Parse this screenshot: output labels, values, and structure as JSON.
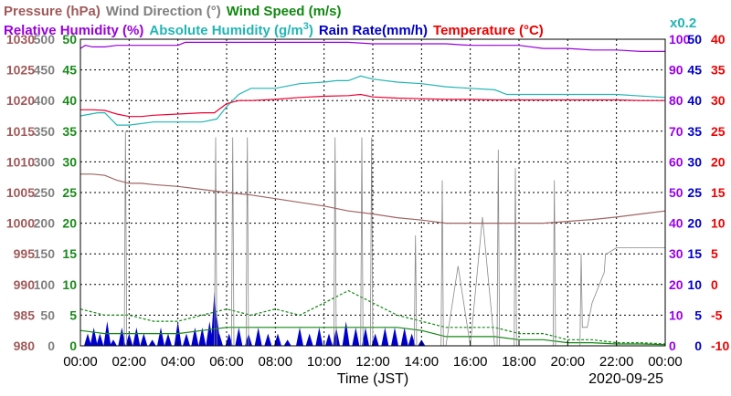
{
  "chart_data": {
    "type": "line",
    "date": "2020-09-25",
    "xlabel": "Time (JST)",
    "x_ticks": [
      "00:00",
      "02:00",
      "04:00",
      "06:00",
      "08:00",
      "10:00",
      "12:00",
      "14:00",
      "16:00",
      "18:00",
      "20:00",
      "22:00",
      "00:00"
    ],
    "xlim_hours": [
      0,
      24
    ],
    "grid": true,
    "legend_labels": {
      "pressure": "Pressure (hPa)",
      "wind_direction": "Wind Direction (°)",
      "wind_speed": "Wind Speed (m/s)",
      "humidity": "Relative Humidity (%)",
      "abs_humidity_prefix": "Absolute Humidity (g/m",
      "abs_humidity_sup": "3",
      "abs_humidity_suffix": ")",
      "rain_rate": "Rain Rate(mm/h)",
      "temperature": "Temperature (°C)",
      "scale_note": "x0.2"
    },
    "axes": {
      "pressure": {
        "ticks": [
          "980",
          "985",
          "990",
          "995",
          "1000",
          "1005",
          "1010",
          "1015",
          "1020",
          "1025",
          "1030"
        ],
        "range": [
          980,
          1030
        ],
        "color": "#a05a5a"
      },
      "wind_direction": {
        "ticks": [
          "0",
          "50",
          "100",
          "150",
          "200",
          "250",
          "300",
          "350",
          "400",
          "450",
          "500"
        ],
        "range": [
          0,
          500
        ],
        "color": "#808080"
      },
      "wind_speed": {
        "ticks": [
          "0",
          "5",
          "10",
          "15",
          "20",
          "25",
          "30",
          "35",
          "40",
          "45",
          "50"
        ],
        "range": [
          0,
          50
        ],
        "color": "#1a8a1a"
      },
      "humidity": {
        "ticks": [
          "0",
          "10",
          "20",
          "30",
          "40",
          "50",
          "60",
          "70",
          "80",
          "90",
          "100"
        ],
        "range": [
          0,
          100
        ],
        "color": "#9900ee"
      },
      "rain_rate": {
        "ticks": [
          "0",
          "5",
          "10",
          "15",
          "20",
          "25",
          "30",
          "35",
          "40",
          "45",
          "50"
        ],
        "range": [
          0,
          50
        ],
        "color": "#0000cc"
      },
      "temperature": {
        "ticks": [
          "-10",
          "-5",
          "0",
          "5",
          "10",
          "15",
          "20",
          "25",
          "30",
          "35",
          "40"
        ],
        "range": [
          -10,
          40
        ],
        "color": "#ee0000"
      }
    },
    "colors": {
      "pressure": "#a06464",
      "wind_direction": "#888888",
      "wind_speed": "#118811",
      "humidity": "#9900dd",
      "abs_humidity": "#22b5b5",
      "rain_rate": "#0000cc",
      "temperature": "#ee0033"
    },
    "series": [
      {
        "key": "pressure",
        "name": "Pressure (hPa)",
        "axis": "pressure",
        "x": [
          0,
          0.5,
          1,
          1.5,
          2,
          2.5,
          3,
          4,
          5,
          6,
          7,
          8,
          9,
          10,
          11,
          12,
          13,
          14,
          15,
          16,
          17,
          18,
          19,
          20,
          21,
          22,
          23,
          24
        ],
        "y": [
          1008,
          1008,
          1007.8,
          1007,
          1006.5,
          1006.5,
          1006.3,
          1006,
          1005.5,
          1005,
          1004.6,
          1004,
          1003.4,
          1002.8,
          1002,
          1001.5,
          1000.9,
          1000.5,
          1000,
          1000,
          1000,
          1000,
          1000,
          1000.3,
          1000.6,
          1001,
          1001.5,
          1002
        ]
      },
      {
        "key": "temperature",
        "name": "Temperature (°C)",
        "axis": "temperature",
        "x": [
          0,
          0.5,
          1,
          1.5,
          2,
          2.5,
          3,
          4,
          5,
          5.5,
          6,
          6.5,
          7,
          8,
          9,
          10,
          11,
          11.5,
          12,
          13,
          14,
          15,
          16,
          17,
          18,
          19,
          20,
          21,
          22,
          23,
          24
        ],
        "y": [
          28.5,
          28.5,
          28.4,
          27.8,
          27.4,
          27.4,
          27.6,
          27.8,
          28,
          28,
          29.5,
          30,
          30,
          30.2,
          30.5,
          30.7,
          30.8,
          31,
          30.6,
          30.4,
          30.3,
          30.2,
          30.2,
          30.1,
          30.1,
          30.1,
          30.1,
          30.1,
          30.1,
          30,
          30
        ]
      },
      {
        "key": "humidity",
        "name": "Relative Humidity (%)",
        "axis": "humidity",
        "x": [
          0,
          0.2,
          0.5,
          1,
          1.5,
          2,
          3,
          4,
          4.3,
          5,
          6,
          7,
          8,
          9,
          10,
          11,
          12,
          13,
          14,
          15,
          16,
          17,
          18,
          19,
          20,
          21,
          22,
          23,
          24
        ],
        "y": [
          97,
          98,
          97.5,
          97.5,
          98,
          98,
          98,
          98,
          99,
          99,
          99,
          99,
          99,
          99,
          99,
          99,
          98.5,
          98.5,
          98.5,
          98.5,
          98,
          98,
          98,
          97,
          97,
          96.5,
          96.5,
          96,
          96
        ]
      },
      {
        "key": "abs_humidity",
        "name": "Absolute Humidity (g/m³)",
        "axis": "humidity",
        "x": [
          0,
          0.7,
          1,
          1.5,
          2,
          3,
          4,
          5,
          5.6,
          6,
          6.5,
          7,
          8,
          9,
          10,
          10.5,
          11,
          11.5,
          12,
          13,
          14,
          15,
          16,
          17,
          17.5,
          18,
          19,
          20,
          21,
          22,
          23,
          24
        ],
        "y": [
          75,
          76,
          76,
          72,
          72,
          73,
          73,
          73,
          74,
          78,
          82,
          84,
          84,
          85.5,
          86,
          86.5,
          86.5,
          88,
          87,
          86,
          85.5,
          84.5,
          84,
          83.5,
          82,
          82,
          82,
          82,
          82,
          82,
          81.5,
          81
        ]
      },
      {
        "key": "wind_direction",
        "name": "Wind Direction (°)",
        "axis": "wind_direction",
        "x": [
          0,
          1.8,
          1.85,
          1.9,
          2,
          4,
          5.5,
          5.55,
          5.6,
          5.7,
          6,
          6.2,
          6.25,
          6.3,
          6.4,
          6.8,
          6.85,
          6.9,
          7,
          8,
          9,
          10,
          10.4,
          10.45,
          10.5,
          10.6,
          11,
          11.5,
          11.55,
          11.6,
          11.7,
          11.9,
          11.95,
          12,
          12.1,
          13,
          13.7,
          13.75,
          13.8,
          13.9,
          14.2,
          14.8,
          14.85,
          14.9,
          15,
          15.5,
          16,
          16.5,
          17,
          17.1,
          17.15,
          17.2,
          17.3,
          17.8,
          17.85,
          17.9,
          18,
          19,
          19.4,
          19.45,
          19.5,
          19.6,
          20,
          20.5,
          20.55,
          20.6,
          20.8,
          21,
          21.5,
          21.55,
          21.6,
          22,
          24
        ],
        "y": [
          0,
          0,
          350,
          0,
          0,
          0,
          0,
          340,
          0,
          0,
          0,
          0,
          340,
          0,
          0,
          0,
          340,
          0,
          0,
          0,
          0,
          0,
          0,
          340,
          0,
          0,
          0,
          0,
          340,
          0,
          0,
          0,
          340,
          0,
          0,
          0,
          0,
          180,
          0,
          0,
          0,
          0,
          270,
          0,
          0,
          130,
          0,
          210,
          0,
          0,
          320,
          0,
          0,
          0,
          290,
          0,
          0,
          0,
          0,
          270,
          0,
          0,
          0,
          0,
          150,
          30,
          30,
          70,
          120,
          150,
          150,
          160,
          160
        ]
      },
      {
        "key": "wind_speed",
        "name": "Wind Speed (m/s)",
        "axis": "wind_speed",
        "x": [
          0,
          1,
          2,
          3,
          4,
          5,
          6,
          7,
          8,
          9,
          10,
          11,
          12,
          13,
          14,
          15,
          16,
          17,
          18,
          19,
          20,
          21,
          22,
          23,
          24
        ],
        "y": [
          6,
          5,
          5,
          4,
          4,
          5,
          6,
          5,
          6,
          5,
          7,
          9,
          7,
          5,
          4,
          3,
          3,
          3,
          2,
          2,
          1,
          1,
          0.5,
          0.5,
          0.3
        ]
      },
      {
        "key": "wind_speed_avg",
        "name": "",
        "axis": "wind_speed",
        "x": [
          0,
          1,
          2,
          3,
          4,
          5,
          6,
          7,
          8,
          9,
          10,
          11,
          12,
          13,
          14,
          15,
          16,
          17,
          18,
          19,
          20,
          21,
          22,
          23,
          24
        ],
        "y": [
          2.5,
          2,
          2,
          2,
          2,
          2.5,
          3,
          3,
          3,
          3,
          3,
          3,
          3,
          3,
          2.5,
          1.5,
          1.5,
          1.5,
          1,
          1,
          0.5,
          0.5,
          0.3,
          0.3,
          0.2
        ]
      },
      {
        "key": "rain_rate",
        "name": "Rain Rate(mm/h)",
        "axis": "rain_rate",
        "x": [
          0.3,
          0.55,
          0.8,
          1.1,
          1.35,
          1.7,
          2,
          2.3,
          2.6,
          2.95,
          3.3,
          3.6,
          4,
          4.35,
          4.7,
          5,
          5.3,
          5.5,
          5.6,
          5.7,
          6.1,
          6.5,
          6.9,
          7.3,
          7.7,
          8.1,
          8.5,
          9,
          9.4,
          9.8,
          10.2,
          10.5,
          10.9,
          11.3,
          11.7,
          12.1,
          12.5,
          12.9,
          13.3,
          13.6,
          14
        ],
        "y": [
          2,
          3,
          2,
          4,
          1,
          3,
          2,
          3,
          2,
          1,
          3,
          2,
          4,
          2,
          3,
          3,
          4,
          9,
          5,
          2,
          2,
          3,
          2,
          3,
          2,
          2,
          1,
          3,
          2,
          3,
          2,
          3,
          4,
          3,
          3,
          2,
          3,
          3,
          3,
          2,
          1
        ]
      }
    ]
  }
}
